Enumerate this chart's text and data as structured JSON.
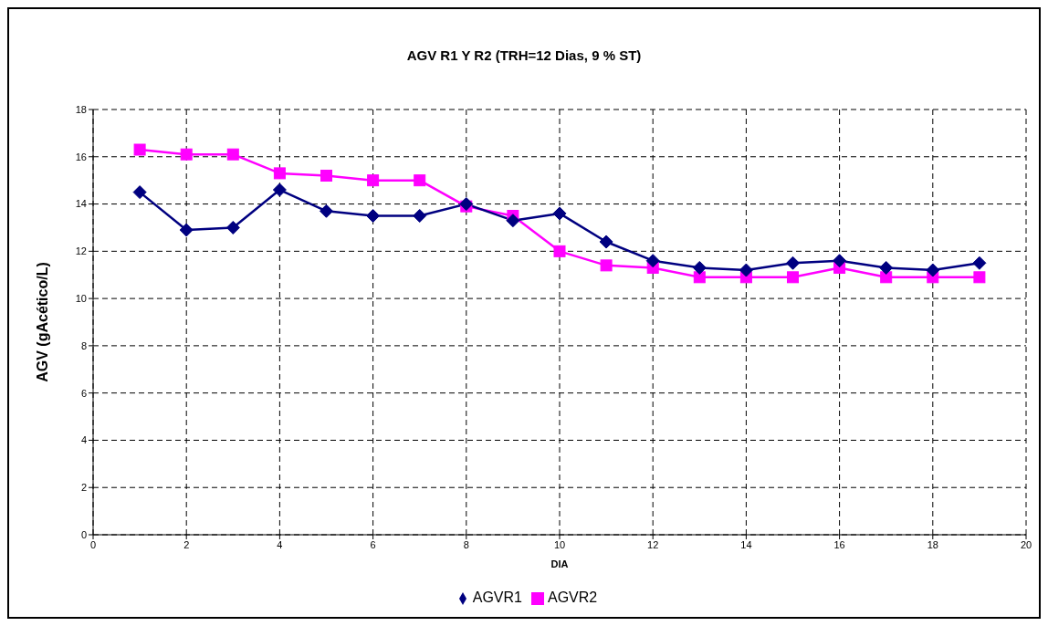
{
  "chart_data": {
    "type": "line",
    "title": "AGV R1 Y R2 (TRH=12 Dias, 9 % ST)",
    "xlabel": "DIA",
    "ylabel": "AGV (gAcético/L)",
    "x": [
      1,
      2,
      3,
      4,
      5,
      6,
      7,
      8,
      9,
      10,
      11,
      12,
      13,
      14,
      15,
      16,
      17,
      18,
      19
    ],
    "series": [
      {
        "name": "AGVR1",
        "color": "#000080",
        "marker": "diamond",
        "values": [
          14.5,
          12.9,
          13.0,
          14.6,
          13.7,
          13.5,
          13.5,
          14.0,
          13.3,
          13.6,
          12.4,
          11.6,
          11.3,
          11.2,
          11.5,
          11.6,
          11.3,
          11.2,
          11.5
        ]
      },
      {
        "name": "AGVR2",
        "color": "#ff00ff",
        "marker": "square",
        "values": [
          16.3,
          16.1,
          16.1,
          15.3,
          15.2,
          15.0,
          15.0,
          13.9,
          13.5,
          12.0,
          11.4,
          11.3,
          10.9,
          10.9,
          10.9,
          11.3,
          10.9,
          10.9,
          10.9
        ]
      }
    ],
    "xlim": [
      0,
      20
    ],
    "xticks": [
      0,
      2,
      4,
      6,
      8,
      10,
      12,
      14,
      16,
      18,
      20
    ],
    "ylim": [
      0,
      18
    ],
    "yticks": [
      0,
      2,
      4,
      6,
      8,
      10,
      12,
      14,
      16,
      18
    ],
    "grid": true,
    "legend": "bottom",
    "line_style": "solid"
  }
}
